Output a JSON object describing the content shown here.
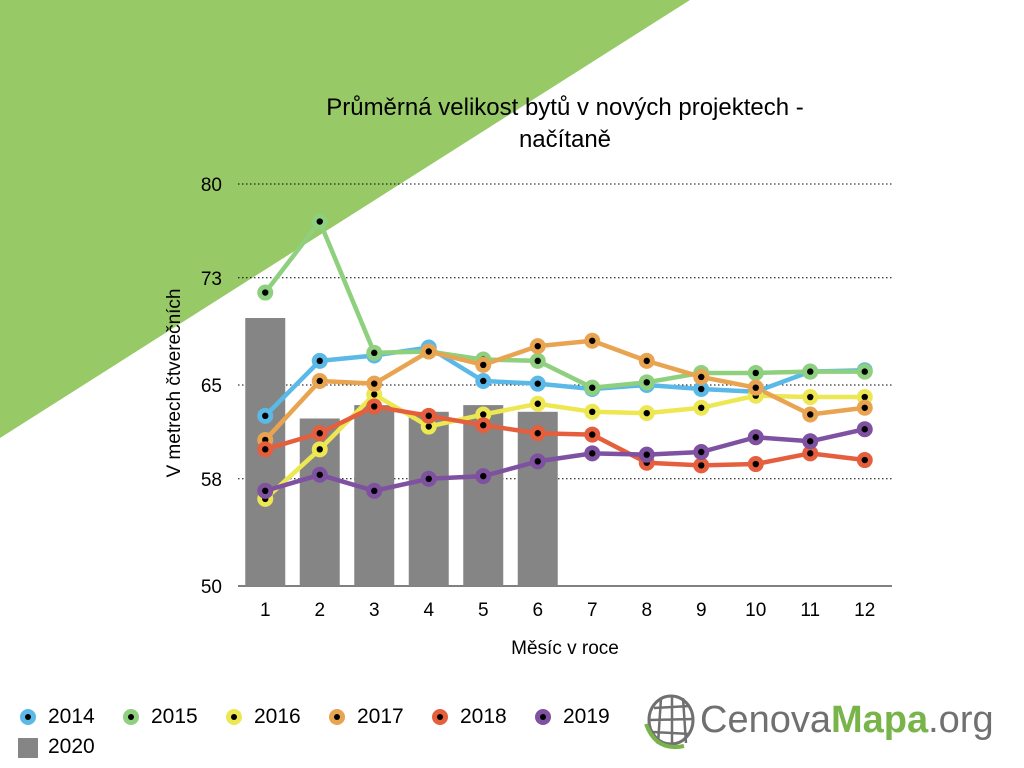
{
  "colors": {
    "triangle": "#97c966",
    "grid": "#000000",
    "bar": "#858585"
  },
  "logo": {
    "part1": "Cenova",
    "part2": "Mapa",
    "part3": ".org",
    "icon": "globe-grid-icon",
    "color_gray": "#707070",
    "color_green": "#79b44a"
  },
  "chart_data": {
    "type": "line",
    "title_line1": "Průměrná velikost bytů v nových projektech -",
    "title_line2": "načítaně",
    "xlabel": "Měsíc v roce",
    "ylabel": "V metrech čtverečních",
    "x": [
      1,
      2,
      3,
      4,
      5,
      6,
      7,
      8,
      9,
      10,
      11,
      12
    ],
    "ylim": [
      50,
      80
    ],
    "yticks": [
      50,
      58,
      65,
      73,
      80
    ],
    "grid": "horizontal dotted",
    "legend_position": "bottom-left",
    "bars": {
      "name": "2020",
      "color": "#858585",
      "values": [
        70,
        62.5,
        63.5,
        63,
        63.5,
        63
      ]
    },
    "series": [
      {
        "name": "2014",
        "color": "#5bb9e8",
        "values": [
          62.7,
          66.8,
          67.2,
          67.8,
          65.3,
          65.1,
          64.7,
          65.0,
          64.7,
          64.5,
          66.0,
          66.1
        ]
      },
      {
        "name": "2015",
        "color": "#8ed07e",
        "values": [
          71.9,
          77.2,
          67.4,
          67.5,
          66.9,
          66.8,
          64.8,
          65.2,
          65.9,
          65.9,
          66.0,
          66.0
        ]
      },
      {
        "name": "2016",
        "color": "#ede752",
        "values": [
          56.5,
          60.2,
          64.3,
          61.9,
          62.8,
          63.6,
          63.0,
          62.9,
          63.3,
          64.2,
          64.1,
          64.1
        ]
      },
      {
        "name": "2017",
        "color": "#e9a451",
        "values": [
          60.9,
          65.3,
          65.1,
          67.5,
          66.5,
          67.9,
          68.3,
          66.8,
          65.6,
          64.8,
          62.8,
          63.3
        ]
      },
      {
        "name": "2018",
        "color": "#e55f3e",
        "values": [
          60.2,
          61.4,
          63.4,
          62.7,
          62.0,
          61.4,
          61.3,
          59.2,
          59.0,
          59.1,
          59.9,
          59.4
        ]
      },
      {
        "name": "2019",
        "color": "#7f51a1",
        "values": [
          57.1,
          58.3,
          57.1,
          58.0,
          58.2,
          59.3,
          59.9,
          59.8,
          60.0,
          61.1,
          60.8,
          61.7
        ]
      }
    ]
  }
}
